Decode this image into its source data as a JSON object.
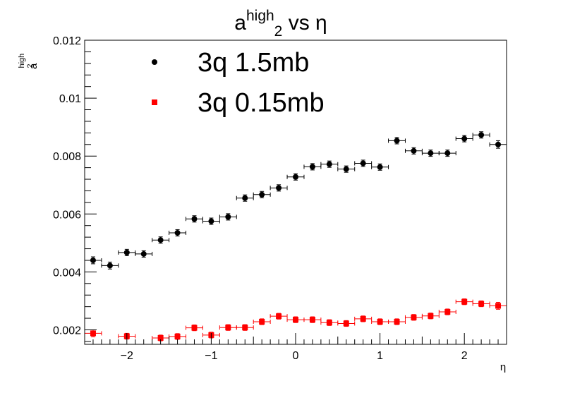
{
  "chart_data": {
    "type": "scatter",
    "title": {
      "base": "a",
      "sub": "2",
      "sup": "high",
      "rest": " vs η"
    },
    "xlabel": "η",
    "ylabel": {
      "base": "a",
      "sub": "2",
      "sup": "high"
    },
    "xlim": [
      -2.5,
      2.5
    ],
    "ylim": [
      0.0015,
      0.012
    ],
    "xticks": [
      -2,
      -1,
      0,
      1,
      2
    ],
    "xtick_labels": [
      "−2",
      "−1",
      "0",
      "1",
      "2"
    ],
    "yticks": [
      0.002,
      0.004,
      0.006,
      0.008,
      0.01,
      0.012
    ],
    "ytick_labels": [
      "0.002",
      "0.004",
      "0.006",
      "0.008",
      "0.01",
      "0.012"
    ],
    "grid": false,
    "legend_position": "top-left",
    "x": [
      -2.4,
      -2.2,
      -2.0,
      -1.8,
      -1.6,
      -1.4,
      -1.2,
      -1.0,
      -0.8,
      -0.6,
      -0.4,
      -0.2,
      0.0,
      0.2,
      0.4,
      0.6,
      0.8,
      1.0,
      1.2,
      1.4,
      1.6,
      1.8,
      2.0,
      2.2,
      2.4
    ],
    "x_halfwidth": 0.1,
    "series": [
      {
        "name": "3q 1.5mb",
        "marker": "circle",
        "color": "#000000",
        "values": [
          0.0044,
          0.00422,
          0.00467,
          0.00462,
          0.0051,
          0.00535,
          0.00583,
          0.00575,
          0.0059,
          0.00655,
          0.00667,
          0.0069,
          0.00728,
          0.00763,
          0.00772,
          0.00755,
          0.00775,
          0.00762,
          0.00853,
          0.00818,
          0.0081,
          0.0081,
          0.0086,
          0.00873,
          0.0084
        ],
        "errors": [
          0.00012,
          0.00012,
          0.00011,
          0.00011,
          0.00011,
          0.00011,
          0.00011,
          0.00011,
          0.00011,
          0.00011,
          0.00011,
          0.00011,
          0.00011,
          0.00011,
          0.00011,
          0.00011,
          0.00011,
          0.00011,
          0.00011,
          0.00011,
          0.00011,
          0.00011,
          0.00011,
          0.00011,
          0.00013
        ]
      },
      {
        "name": "3q 0.15mb",
        "marker": "square",
        "color": "#ff0000",
        "values": [
          0.00188,
          null,
          0.00178,
          null,
          0.00172,
          0.00177,
          0.00207,
          0.00182,
          0.00208,
          0.00208,
          0.00228,
          0.00247,
          0.00235,
          0.00235,
          0.00225,
          0.00222,
          0.00238,
          0.00228,
          0.00228,
          0.00243,
          0.00248,
          0.00262,
          0.00297,
          0.0029,
          0.00283
        ],
        "errors": [
          0.00012,
          null,
          0.0001,
          null,
          0.0001,
          0.0001,
          0.0001,
          0.0001,
          0.0001,
          0.0001,
          0.0001,
          0.0001,
          0.0001,
          0.0001,
          0.0001,
          0.0001,
          0.0001,
          0.0001,
          0.0001,
          0.0001,
          0.0001,
          0.0001,
          0.0001,
          0.0001,
          0.00012
        ]
      }
    ]
  }
}
